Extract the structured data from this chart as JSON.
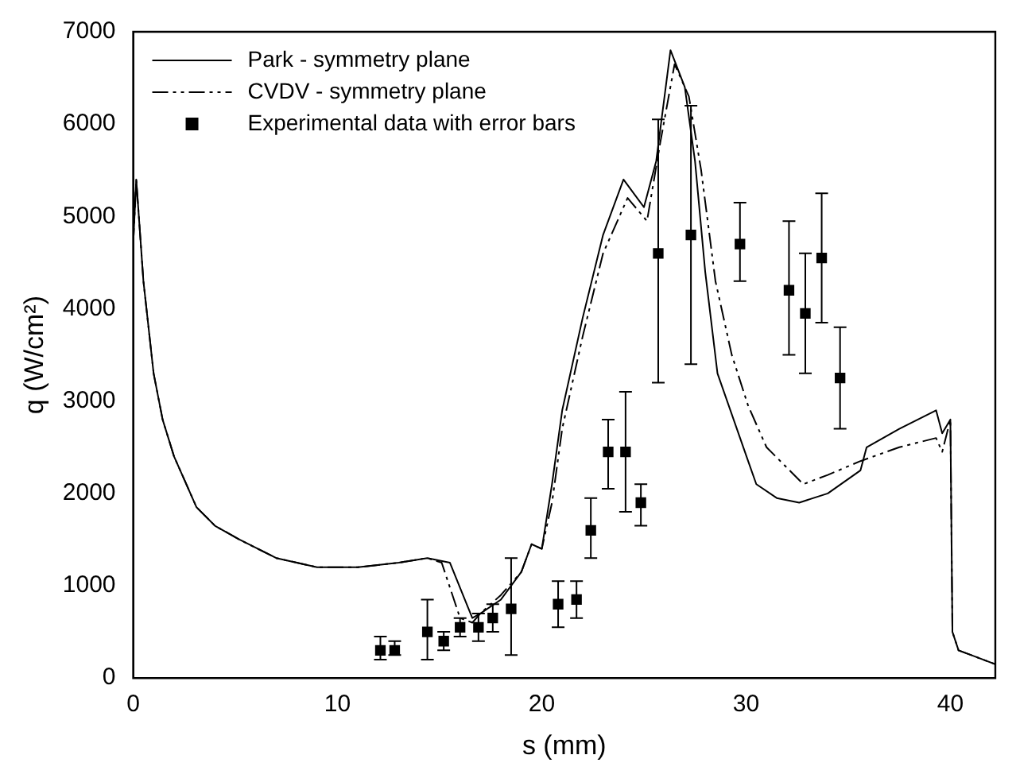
{
  "chart_data": {
    "type": "line",
    "xlabel": "s (mm)",
    "ylabel": "q (W/cm²)",
    "xlim": [
      0,
      42.2
    ],
    "ylim": [
      0,
      7000
    ],
    "xticks": [
      0,
      10,
      20,
      30,
      40
    ],
    "yticks": [
      0,
      1000,
      2000,
      3000,
      4000,
      5000,
      6000,
      7000
    ],
    "grid": false,
    "legend": "top left",
    "series": [
      {
        "name": "Park - symmetry plane",
        "color": "#000000",
        "line_style": "solid",
        "marker": "none",
        "x": [
          0,
          0.15,
          0.5,
          1,
          1.44,
          2,
          3.1,
          4,
          5.2,
          7,
          9,
          11,
          13,
          14.4,
          15.5,
          16.6,
          17,
          18,
          19,
          19.5,
          20,
          20.5,
          21,
          22,
          23,
          24,
          25,
          25.6,
          26.3,
          27,
          27.5,
          28,
          28.6,
          30.1,
          30.5,
          31.5,
          32.6,
          34,
          35.6,
          35.9,
          37.5,
          39.3,
          39.6,
          40,
          40.1,
          40.4,
          41,
          42.2
        ],
        "values": [
          4700,
          5400,
          4300,
          3300,
          2800,
          2400,
          1850,
          1650,
          1500,
          1300,
          1200,
          1200,
          1250,
          1300,
          1250,
          650,
          700,
          850,
          1150,
          1450,
          1400,
          2100,
          2900,
          3900,
          4800,
          5400,
          5100,
          5600,
          6800,
          6400,
          5600,
          4400,
          3300,
          2350,
          2100,
          1950,
          1900,
          2000,
          2250,
          2500,
          2700,
          2900,
          2650,
          2800,
          500,
          300,
          250,
          150
        ]
      },
      {
        "name": "CVDV - symmetry plane",
        "color": "#000000",
        "line_style": "dashed",
        "marker": "none",
        "x": [
          0,
          0.15,
          0.5,
          1,
          1.44,
          2,
          3.1,
          4,
          5.2,
          7,
          9,
          11,
          13,
          14.4,
          15.1,
          16,
          16.6,
          17,
          18,
          19,
          19.5,
          20,
          20.5,
          21,
          22,
          23,
          24.2,
          25.15,
          25.8,
          26.5,
          27.2,
          27.8,
          28.5,
          29.3,
          30.1,
          31,
          32.8,
          34,
          35.6,
          37.5,
          39.3,
          39.6,
          40,
          40.1,
          40.4,
          41,
          42.2
        ],
        "values": [
          4700,
          5400,
          4300,
          3300,
          2800,
          2400,
          1850,
          1650,
          1500,
          1300,
          1200,
          1200,
          1250,
          1300,
          1250,
          650,
          600,
          700,
          900,
          1150,
          1450,
          1400,
          1900,
          2700,
          3700,
          4600,
          5200,
          4950,
          5800,
          6650,
          6300,
          5500,
          4300,
          3500,
          2950,
          2500,
          2100,
          2200,
          2350,
          2500,
          2600,
          2450,
          2800,
          500,
          300,
          250,
          150
        ]
      },
      {
        "name": "Experimental data with error bars",
        "type": "scatter",
        "color": "#000000",
        "marker": "square",
        "x": [
          12.1,
          12.8,
          14.4,
          15.2,
          16.0,
          16.9,
          17.6,
          18.5,
          20.8,
          21.7,
          22.4,
          23.25,
          24.1,
          24.85,
          25.7,
          27.3,
          29.7,
          32.1,
          32.9,
          33.7,
          34.6
        ],
        "values": [
          300,
          300,
          500,
          400,
          550,
          550,
          650,
          750,
          800,
          850,
          1600,
          2450,
          2450,
          1900,
          4600,
          4800,
          4700,
          4200,
          3950,
          4550,
          3250
        ],
        "errors": [
          [
            200,
            450
          ],
          [
            250,
            400
          ],
          [
            200,
            850
          ],
          [
            300,
            500
          ],
          [
            450,
            650
          ],
          [
            400,
            700
          ],
          [
            500,
            800
          ],
          [
            250,
            1300
          ],
          [
            550,
            1050
          ],
          [
            650,
            1050
          ],
          [
            1300,
            1950
          ],
          [
            2050,
            2800
          ],
          [
            1800,
            3100
          ],
          [
            1650,
            2100
          ],
          [
            3200,
            6050
          ],
          [
            3400,
            6200
          ],
          [
            4300,
            5150
          ],
          [
            3500,
            4950
          ],
          [
            3300,
            4600
          ],
          [
            3850,
            5250
          ],
          [
            2700,
            3800
          ]
        ]
      }
    ]
  }
}
